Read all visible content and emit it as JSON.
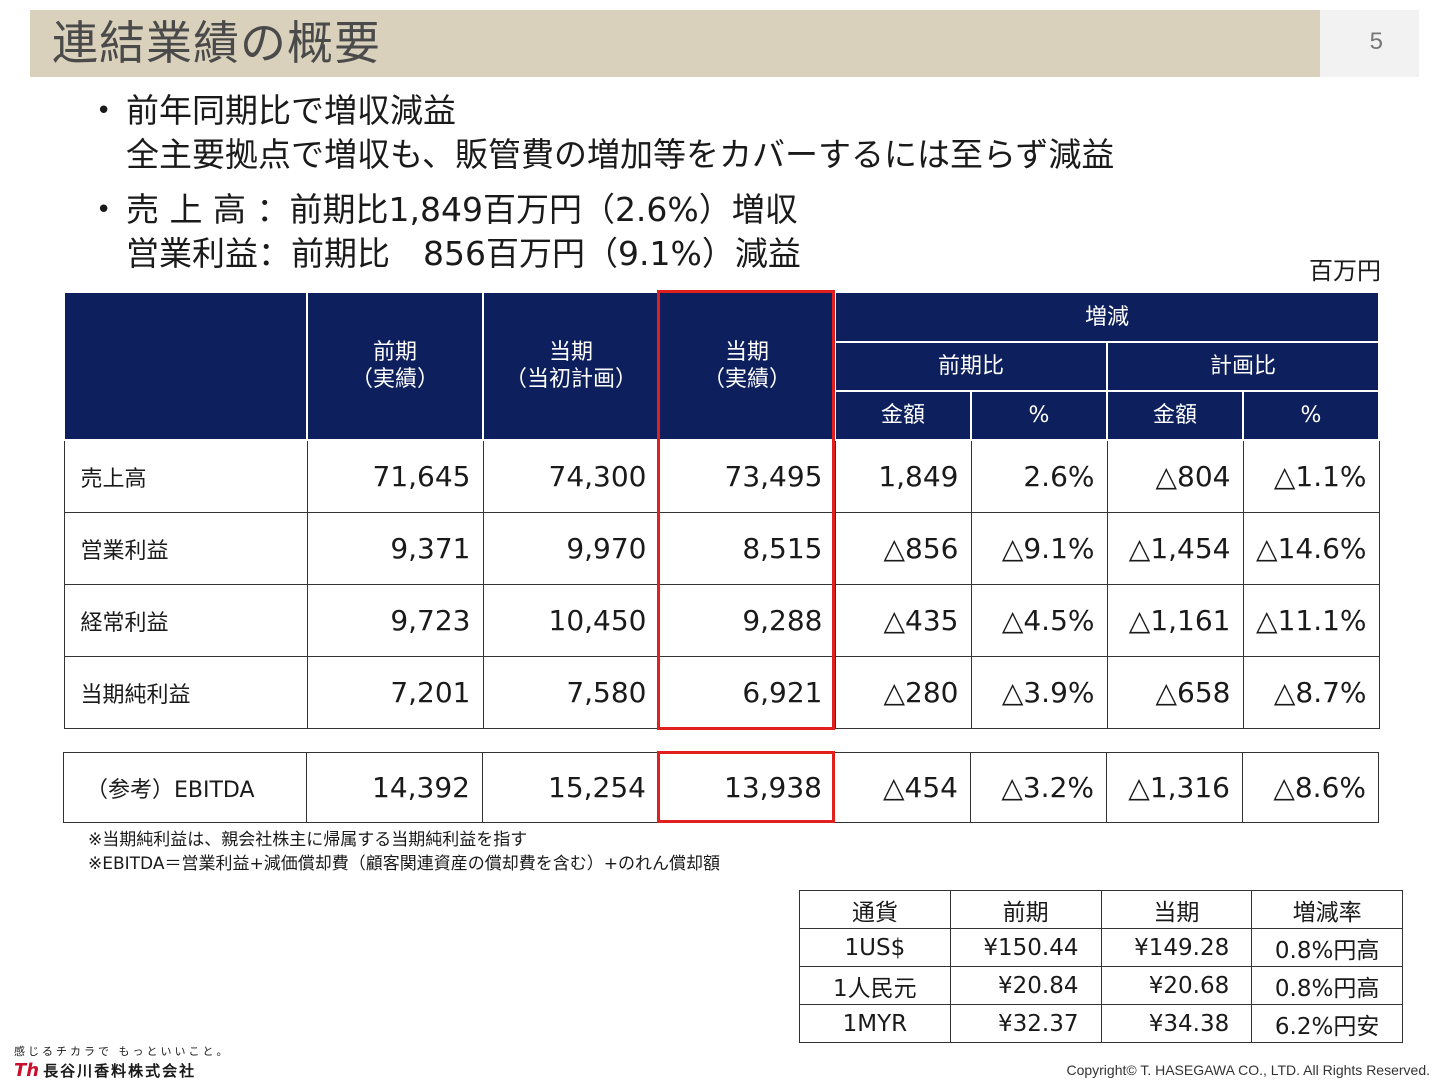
{
  "header": {
    "title": "連結業績の概要",
    "page_number": "5"
  },
  "bullets": [
    {
      "lines": [
        "前年同期比で増収減益",
        "全主要拠点で増収も、販管費の増加等をカバーするには至らず減益"
      ]
    },
    {
      "lines": [
        "売 上 高 ：前期比1,849百万円（2.6%）増収",
        "営業利益：前期比　856百万円（9.1%）減益"
      ]
    }
  ],
  "unit_label": "百万円",
  "main_table": {
    "headers": {
      "prev": [
        "前期",
        "（実績）"
      ],
      "plan": [
        "当期",
        "（当初計画）"
      ],
      "actual": [
        "当期",
        "（実績）"
      ],
      "change": "増減",
      "vs_prev": "前期比",
      "vs_plan": "計画比",
      "amount": "金額",
      "pct": "%"
    },
    "rows": [
      {
        "label": "売上高",
        "values": [
          "71,645",
          "74,300",
          "73,495",
          "1,849",
          "2.6%",
          "△804",
          "△1.1%"
        ]
      },
      {
        "label": "営業利益",
        "values": [
          "9,371",
          "9,970",
          "8,515",
          "△856",
          "△9.1%",
          "△1,454",
          "△14.6%"
        ]
      },
      {
        "label": "経常利益",
        "values": [
          "9,723",
          "10,450",
          "9,288",
          "△435",
          "△4.5%",
          "△1,161",
          "△11.1%"
        ]
      },
      {
        "label": "当期純利益",
        "values": [
          "7,201",
          "7,580",
          "6,921",
          "△280",
          "△3.9%",
          "△658",
          "△8.7%"
        ]
      }
    ]
  },
  "ebitda_row": {
    "label": "（参考）EBITDA",
    "values": [
      "14,392",
      "15,254",
      "13,938",
      "△454",
      "△3.2%",
      "△1,316",
      "△8.6%"
    ]
  },
  "notes": [
    "※当期純利益は、親会社株主に帰属する当期純利益を指す",
    "※EBITDA＝営業利益+減価償却費（顧客関連資産の償却費を含む）+のれん償却額"
  ],
  "fx_table": {
    "headers": [
      "通貨",
      "前期",
      "当期",
      "増減率"
    ],
    "rows": [
      [
        "1US$",
        "¥150.44",
        "¥149.28",
        "0.8%円高"
      ],
      [
        "1人民元",
        "¥20.84",
        "¥20.68",
        "0.8%円高"
      ],
      [
        "1MYR",
        "¥32.37",
        "¥34.38",
        "6.2%円安"
      ]
    ]
  },
  "footer": {
    "tagline": "感じるチカラで もっといいこと。",
    "company": "長谷川香料株式会社",
    "copyright": "Copyright© T. HASEGAWA CO., LTD. All Rights Reserved."
  },
  "colors": {
    "header_navy": "#0d1f5c",
    "highlight_red": "#e01f1f",
    "title_bar": "#d9d1bb"
  }
}
